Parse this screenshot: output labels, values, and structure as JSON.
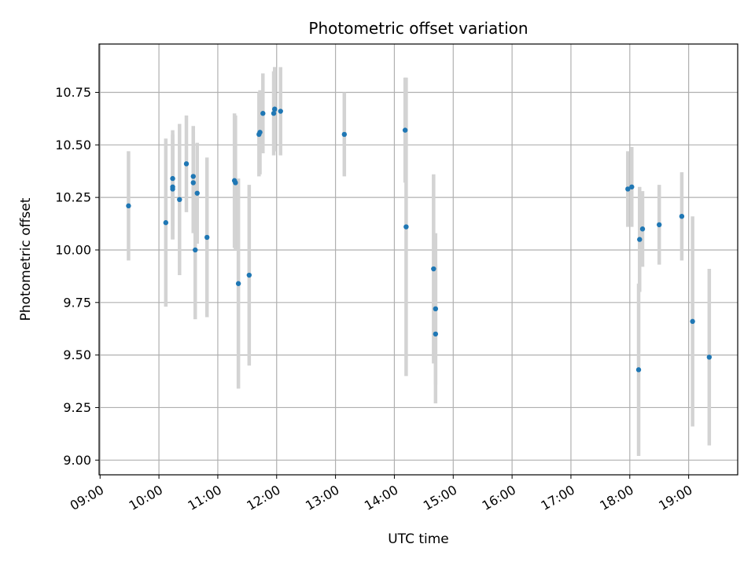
{
  "chart_data": {
    "type": "scatter",
    "title": "Photometric offset variation",
    "xlabel": "UTC time",
    "ylabel": "Photometric offset",
    "x_unit": "hours (UTC)",
    "xlim": [
      "08:59",
      "19:50"
    ],
    "ylim": [
      8.93,
      10.98
    ],
    "grid": true,
    "x_ticks": [
      "09:00",
      "10:00",
      "11:00",
      "12:00",
      "13:00",
      "14:00",
      "15:00",
      "16:00",
      "17:00",
      "18:00",
      "19:00"
    ],
    "y_ticks": [
      9.0,
      9.25,
      9.5,
      9.75,
      10.0,
      10.25,
      10.5,
      10.75
    ],
    "y_tick_labels": [
      "9.00",
      "9.25",
      "9.50",
      "9.75",
      "10.00",
      "10.25",
      "10.50",
      "10.75"
    ],
    "colors": {
      "point": "#1f77b4",
      "errorbar": "#d3d3d3",
      "grid": "#b0b0b0"
    },
    "points": [
      {
        "x": "09:29",
        "y": 10.21,
        "err": 0.26
      },
      {
        "x": "10:07",
        "y": 10.13,
        "err": 0.4
      },
      {
        "x": "10:14",
        "y": 10.34,
        "err": 0.23
      },
      {
        "x": "10:14",
        "y": 10.29,
        "err": 0.24
      },
      {
        "x": "10:14",
        "y": 10.3,
        "err": 0.25
      },
      {
        "x": "10:21",
        "y": 10.24,
        "err": 0.36
      },
      {
        "x": "10:28",
        "y": 10.41,
        "err": 0.23
      },
      {
        "x": "10:35",
        "y": 10.35,
        "err": 0.24
      },
      {
        "x": "10:35",
        "y": 10.32,
        "err": 0.24
      },
      {
        "x": "10:37",
        "y": 10.0,
        "err": 0.33
      },
      {
        "x": "10:39",
        "y": 10.27,
        "err": 0.24
      },
      {
        "x": "10:49",
        "y": 10.06,
        "err": 0.38
      },
      {
        "x": "11:17",
        "y": 10.33,
        "err": 0.32
      },
      {
        "x": "11:18",
        "y": 10.32,
        "err": 0.32
      },
      {
        "x": "11:21",
        "y": 9.84,
        "err": 0.5
      },
      {
        "x": "11:32",
        "y": 9.88,
        "err": 0.43
      },
      {
        "x": "11:42",
        "y": 10.55,
        "err": 0.2
      },
      {
        "x": "11:43",
        "y": 10.56,
        "err": 0.2
      },
      {
        "x": "11:46",
        "y": 10.65,
        "err": 0.19
      },
      {
        "x": "11:57",
        "y": 10.65,
        "err": 0.2
      },
      {
        "x": "11:58",
        "y": 10.67,
        "err": 0.2
      },
      {
        "x": "11:58",
        "y": 10.67,
        "err": 0.2
      },
      {
        "x": "12:04",
        "y": 10.66,
        "err": 0.21
      },
      {
        "x": "13:09",
        "y": 10.55,
        "err": 0.2
      },
      {
        "x": "14:11",
        "y": 10.57,
        "err": 0.25
      },
      {
        "x": "14:12",
        "y": 10.11,
        "err": 0.71
      },
      {
        "x": "14:40",
        "y": 9.91,
        "err": 0.45
      },
      {
        "x": "14:42",
        "y": 9.72,
        "err": 0.36
      },
      {
        "x": "14:42",
        "y": 9.6,
        "err": 0.33
      },
      {
        "x": "17:58",
        "y": 10.29,
        "err": 0.18
      },
      {
        "x": "18:02",
        "y": 10.3,
        "err": 0.19
      },
      {
        "x": "18:09",
        "y": 9.43,
        "err": 0.41
      },
      {
        "x": "18:10",
        "y": 10.05,
        "err": 0.25
      },
      {
        "x": "18:13",
        "y": 10.1,
        "err": 0.18
      },
      {
        "x": "18:30",
        "y": 10.12,
        "err": 0.19
      },
      {
        "x": "18:53",
        "y": 10.16,
        "err": 0.21
      },
      {
        "x": "19:04",
        "y": 9.66,
        "err": 0.5
      },
      {
        "x": "19:21",
        "y": 9.49,
        "err": 0.42
      }
    ]
  }
}
